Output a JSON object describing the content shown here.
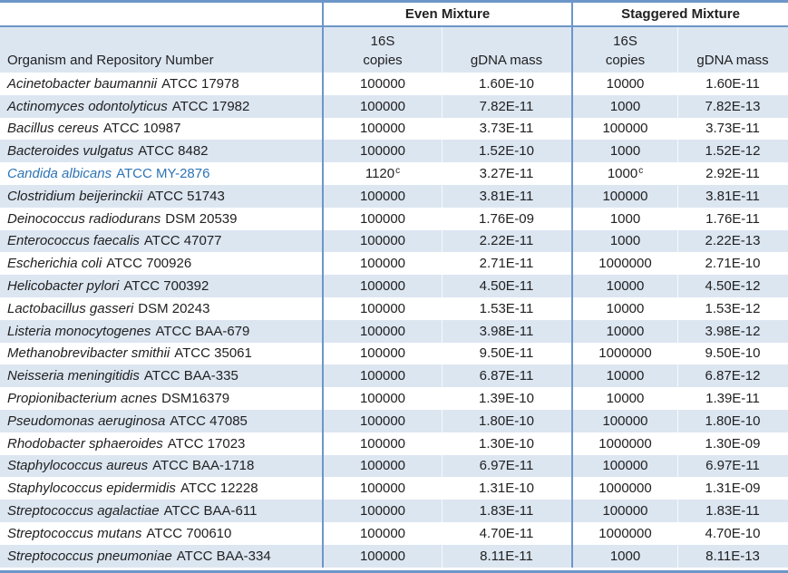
{
  "table": {
    "organism_header": "Organism and Repository Number",
    "groups": {
      "even_label": "Even Mixture",
      "staggered_label": "Staggered Mixture"
    },
    "subheaders": {
      "copies_top": "16S",
      "copies_bottom": "copies",
      "gdna": "gDNA mass"
    },
    "rows": [
      {
        "organism": "Acinetobacter baumannii",
        "repository": "ATCC 17978",
        "even_copies": "100000",
        "even_copies_sup": "",
        "even_gdna": "1.60E-10",
        "stag_copies": "10000",
        "stag_copies_sup": "",
        "stag_gdna": "1.60E-11",
        "highlighted": false
      },
      {
        "organism": "Actinomyces odontolyticus",
        "repository": "ATCC 17982",
        "even_copies": "100000",
        "even_copies_sup": "",
        "even_gdna": "7.82E-11",
        "stag_copies": "1000",
        "stag_copies_sup": "",
        "stag_gdna": "7.82E-13",
        "highlighted": false
      },
      {
        "organism": "Bacillus cereus",
        "repository": "ATCC 10987",
        "even_copies": "100000",
        "even_copies_sup": "",
        "even_gdna": "3.73E-11",
        "stag_copies": "100000",
        "stag_copies_sup": "",
        "stag_gdna": "3.73E-11",
        "highlighted": false
      },
      {
        "organism": "Bacteroides vulgatus",
        "repository": "ATCC 8482",
        "even_copies": "100000",
        "even_copies_sup": "",
        "even_gdna": "1.52E-10",
        "stag_copies": "1000",
        "stag_copies_sup": "",
        "stag_gdna": "1.52E-12",
        "highlighted": false
      },
      {
        "organism": "Candida albicans",
        "repository": "ATCC MY-2876",
        "even_copies": "1120",
        "even_copies_sup": "c",
        "even_gdna": "3.27E-11",
        "stag_copies": "1000",
        "stag_copies_sup": "c",
        "stag_gdna": "2.92E-11",
        "highlighted": true
      },
      {
        "organism": "Clostridium beijerinckii",
        "repository": "ATCC 51743",
        "even_copies": "100000",
        "even_copies_sup": "",
        "even_gdna": "3.81E-11",
        "stag_copies": "100000",
        "stag_copies_sup": "",
        "stag_gdna": "3.81E-11",
        "highlighted": false
      },
      {
        "organism": "Deinococcus radiodurans",
        "repository": "DSM 20539",
        "even_copies": "100000",
        "even_copies_sup": "",
        "even_gdna": "1.76E-09",
        "stag_copies": "1000",
        "stag_copies_sup": "",
        "stag_gdna": "1.76E-11",
        "highlighted": false
      },
      {
        "organism": "Enterococcus faecalis",
        "repository": "ATCC 47077",
        "even_copies": "100000",
        "even_copies_sup": "",
        "even_gdna": "2.22E-11",
        "stag_copies": "1000",
        "stag_copies_sup": "",
        "stag_gdna": "2.22E-13",
        "highlighted": false
      },
      {
        "organism": "Escherichia coli",
        "repository": "ATCC 700926",
        "even_copies": "100000",
        "even_copies_sup": "",
        "even_gdna": "2.71E-11",
        "stag_copies": "1000000",
        "stag_copies_sup": "",
        "stag_gdna": "2.71E-10",
        "highlighted": false
      },
      {
        "organism": "Helicobacter pylori",
        "repository": "ATCC 700392",
        "even_copies": "100000",
        "even_copies_sup": "",
        "even_gdna": "4.50E-11",
        "stag_copies": "10000",
        "stag_copies_sup": "",
        "stag_gdna": "4.50E-12",
        "highlighted": false
      },
      {
        "organism": "Lactobacillus gasseri",
        "repository": "DSM 20243",
        "even_copies": "100000",
        "even_copies_sup": "",
        "even_gdna": "1.53E-11",
        "stag_copies": "10000",
        "stag_copies_sup": "",
        "stag_gdna": "1.53E-12",
        "highlighted": false
      },
      {
        "organism": "Listeria monocytogenes",
        "repository": "ATCC BAA-679",
        "even_copies": "100000",
        "even_copies_sup": "",
        "even_gdna": "3.98E-11",
        "stag_copies": "10000",
        "stag_copies_sup": "",
        "stag_gdna": "3.98E-12",
        "highlighted": false
      },
      {
        "organism": "Methanobrevibacter smithii",
        "repository": "ATCC 35061",
        "even_copies": "100000",
        "even_copies_sup": "",
        "even_gdna": "9.50E-11",
        "stag_copies": "1000000",
        "stag_copies_sup": "",
        "stag_gdna": "9.50E-10",
        "highlighted": false
      },
      {
        "organism": "Neisseria meningitidis",
        "repository": "ATCC BAA-335",
        "even_copies": "100000",
        "even_copies_sup": "",
        "even_gdna": "6.87E-11",
        "stag_copies": "10000",
        "stag_copies_sup": "",
        "stag_gdna": "6.87E-12",
        "highlighted": false
      },
      {
        "organism": "Propionibacterium acnes",
        "repository": "DSM16379",
        "even_copies": "100000",
        "even_copies_sup": "",
        "even_gdna": "1.39E-10",
        "stag_copies": "10000",
        "stag_copies_sup": "",
        "stag_gdna": "1.39E-11",
        "highlighted": false
      },
      {
        "organism": "Pseudomonas aeruginosa",
        "repository": "ATCC 47085",
        "even_copies": "100000",
        "even_copies_sup": "",
        "even_gdna": "1.80E-10",
        "stag_copies": "100000",
        "stag_copies_sup": "",
        "stag_gdna": "1.80E-10",
        "highlighted": false
      },
      {
        "organism": "Rhodobacter sphaeroides",
        "repository": "ATCC 17023",
        "even_copies": "100000",
        "even_copies_sup": "",
        "even_gdna": "1.30E-10",
        "stag_copies": "1000000",
        "stag_copies_sup": "",
        "stag_gdna": "1.30E-09",
        "highlighted": false
      },
      {
        "organism": "Staphylococcus aureus",
        "repository": "ATCC BAA-1718",
        "even_copies": "100000",
        "even_copies_sup": "",
        "even_gdna": "6.97E-11",
        "stag_copies": "100000",
        "stag_copies_sup": "",
        "stag_gdna": "6.97E-11",
        "highlighted": false
      },
      {
        "organism": "Staphylococcus epidermidis",
        "repository": "ATCC 12228",
        "even_copies": "100000",
        "even_copies_sup": "",
        "even_gdna": "1.31E-10",
        "stag_copies": "1000000",
        "stag_copies_sup": "",
        "stag_gdna": "1.31E-09",
        "highlighted": false
      },
      {
        "organism": "Streptococcus agalactiae",
        "repository": "ATCC BAA-611",
        "even_copies": "100000",
        "even_copies_sup": "",
        "even_gdna": "1.83E-11",
        "stag_copies": "100000",
        "stag_copies_sup": "",
        "stag_gdna": "1.83E-11",
        "highlighted": false
      },
      {
        "organism": "Streptococcus mutans",
        "repository": "ATCC 700610",
        "even_copies": "100000",
        "even_copies_sup": "",
        "even_gdna": "4.70E-11",
        "stag_copies": "1000000",
        "stag_copies_sup": "",
        "stag_gdna": "4.70E-10",
        "highlighted": false
      },
      {
        "organism": "Streptococcus pneumoniae",
        "repository": "ATCC BAA-334",
        "even_copies": "100000",
        "even_copies_sup": "",
        "even_gdna": "8.11E-11",
        "stag_copies": "1000",
        "stag_copies_sup": "",
        "stag_gdna": "8.11E-13",
        "highlighted": false
      }
    ]
  },
  "colors": {
    "stripe": "#DCE6F1",
    "rule_blue": "#6D96C8",
    "highlight_text": "#2E74B5",
    "body_text": "#212121"
  }
}
